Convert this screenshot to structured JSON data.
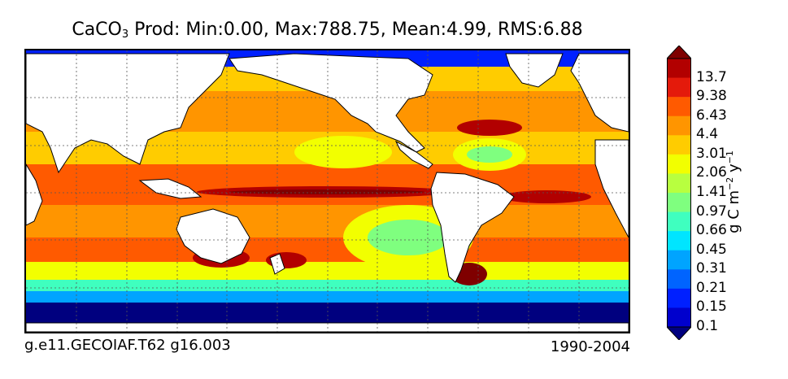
{
  "title": {
    "prefix": "CaCO",
    "subscript": "3",
    "rest": " Prod: Min:0.00, Max:788.75, Mean:4.99, RMS:6.88"
  },
  "footer": {
    "left": "g.e11.GECOIAF.T62 g16.003",
    "right": "1990-2004"
  },
  "colorbar": {
    "labels": [
      "13.7",
      "9.38",
      "6.43",
      "4.4",
      "3.01",
      "2.06",
      "1.41",
      "0.97",
      "0.66",
      "0.45",
      "0.31",
      "0.21",
      "0.15",
      "0.1"
    ],
    "colors_top_to_bottom": [
      "#7f0000",
      "#b20000",
      "#e41a0b",
      "#ff5a00",
      "#ff9500",
      "#ffcc00",
      "#f2ff00",
      "#b8ff3f",
      "#7fff7f",
      "#3fffbf",
      "#00e5ff",
      "#00a4ff",
      "#0064ff",
      "#0020ff",
      "#0000cd",
      "#00007f"
    ],
    "unit_base": "g C m",
    "unit_exp1": "−2",
    "unit_mid": " y",
    "unit_exp2": "−1"
  },
  "map": {
    "land_color": "#ffffff",
    "ocean_high_color": "#ff5a00",
    "ocean_low_color": "#00007f",
    "graticule": "dotted"
  }
}
